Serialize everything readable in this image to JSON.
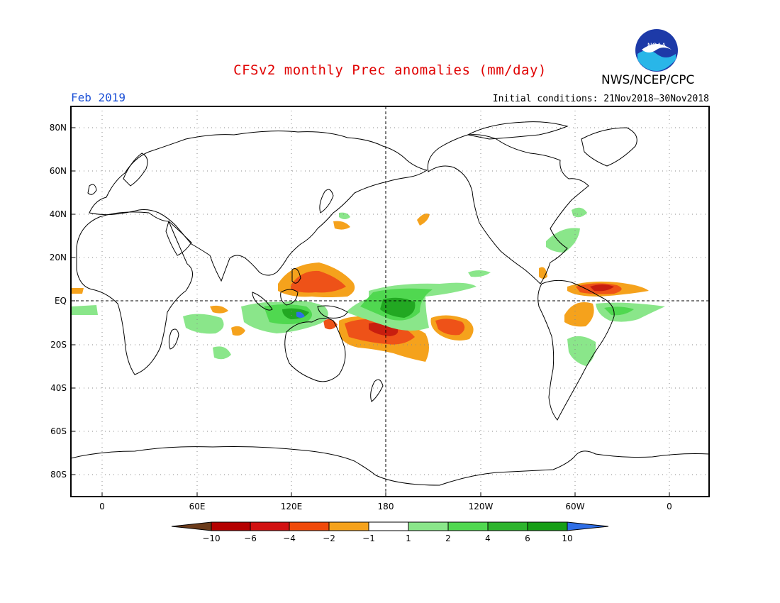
{
  "header": {
    "title": "CFSv2 monthly Prec anomalies (mm/day)",
    "month": "Feb 2019",
    "initial_conditions": "Initial conditions: 21Nov2018–30Nov2018",
    "agency": "NWS/NCEP/CPC",
    "logo_text": "NOAA"
  },
  "axes": {
    "lat_labels": [
      "80N",
      "60N",
      "40N",
      "20N",
      "EQ",
      "20S",
      "40S",
      "60S",
      "80S"
    ],
    "lon_labels": [
      "0",
      "60E",
      "120E",
      "180",
      "120W",
      "60W",
      "0"
    ]
  },
  "colorbar": {
    "labels": [
      "−10",
      "−6",
      "−4",
      "−2",
      "−1",
      "1",
      "2",
      "4",
      "6",
      "10"
    ],
    "colors": [
      "#6b3b1a",
      "#b40000",
      "#d21212",
      "#f04a0a",
      "#f5a21c",
      "#ffffff",
      "#8ae68a",
      "#50d850",
      "#2db42d",
      "#169e16",
      "#2f6ee6"
    ]
  },
  "colors": {
    "dry_strong": "#c81e0f",
    "dry_mid": "#ee5218",
    "dry_weak": "#f5a21c",
    "wet_weak": "#8ae68a",
    "wet_mid": "#50d850",
    "wet_strong": "#22a822",
    "wet_extreme": "#2f6ee6"
  }
}
